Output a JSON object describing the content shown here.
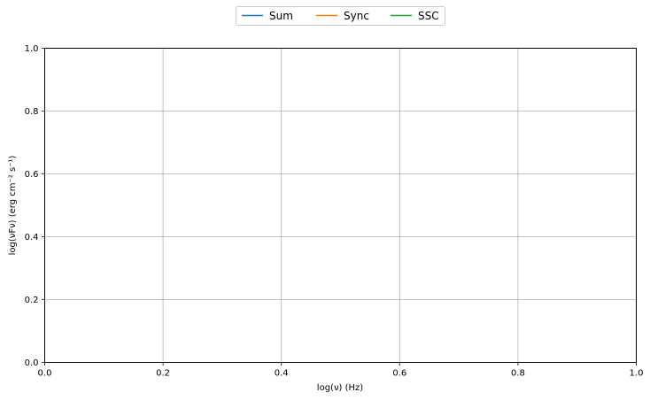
{
  "chart_data": {
    "type": "line",
    "title": "",
    "xlabel": "log(ν)  (Hz)",
    "ylabel": "log(νFν)  (erg cm⁻²  s⁻¹)",
    "xlim": [
      0.0,
      1.0
    ],
    "ylim": [
      0.0,
      1.0
    ],
    "xticks": [
      "0.0",
      "0.2",
      "0.4",
      "0.6",
      "0.8",
      "1.0"
    ],
    "yticks": [
      "0.0",
      "0.2",
      "0.4",
      "0.6",
      "0.8",
      "1.0"
    ],
    "grid": true,
    "legend_position": "top-center",
    "series": [
      {
        "name": "Sum",
        "color": "#1f77b4",
        "x": [],
        "y": []
      },
      {
        "name": "Sync",
        "color": "#ff7f0e",
        "x": [],
        "y": []
      },
      {
        "name": "SSC",
        "color": "#2ca02c",
        "x": [],
        "y": []
      }
    ]
  }
}
